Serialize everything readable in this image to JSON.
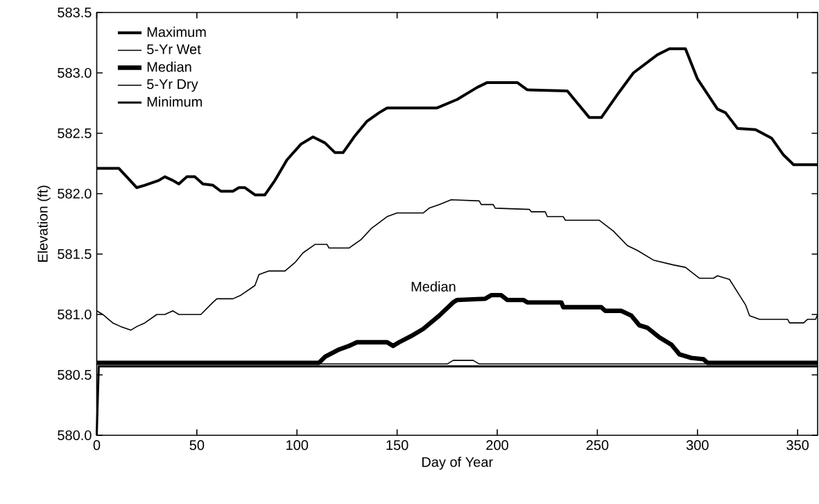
{
  "chart_data": {
    "type": "line",
    "xlabel": "Day of Year",
    "ylabel": "Elevation (ft)",
    "xlim": [
      0,
      360
    ],
    "ylim": [
      580.0,
      583.5
    ],
    "xticks": [
      0,
      50,
      100,
      150,
      200,
      250,
      300,
      350
    ],
    "yticks": [
      {
        "value": 580.0,
        "label": "580.0"
      },
      {
        "value": 580.5,
        "label": "580.5"
      },
      {
        "value": 581.0,
        "label": "581.0"
      },
      {
        "value": 581.5,
        "label": "581.5"
      },
      {
        "value": 582.0,
        "label": "582.0"
      },
      {
        "value": 582.5,
        "label": "582.5"
      },
      {
        "value": 583.0,
        "label": "583.0"
      },
      {
        "value": 583.5,
        "label": "583.5"
      }
    ],
    "grid": false,
    "legend": "top left",
    "line_style": "solid",
    "marker": "none",
    "annotations": [
      "Median"
    ],
    "series": [
      {
        "name": "Maximum",
        "color": "#000000",
        "x": [
          0,
          11,
          20,
          24,
          31,
          34,
          38,
          41,
          45,
          49,
          53,
          58,
          62,
          68,
          71,
          74,
          79,
          84,
          89,
          95,
          102,
          108,
          114,
          119,
          123,
          129,
          135,
          141,
          145,
          170,
          180,
          190,
          195,
          210,
          215,
          235,
          246,
          252,
          260,
          268,
          280,
          286,
          294,
          300,
          310,
          314,
          320,
          329,
          337,
          343,
          348,
          360
        ],
        "values": [
          582.21,
          582.21,
          582.05,
          582.07,
          582.11,
          582.14,
          582.11,
          582.08,
          582.14,
          582.14,
          582.08,
          582.07,
          582.02,
          582.02,
          582.05,
          582.05,
          581.99,
          581.99,
          582.11,
          582.28,
          582.41,
          582.47,
          582.42,
          582.34,
          582.34,
          582.48,
          582.6,
          582.67,
          582.71,
          582.71,
          582.78,
          582.88,
          582.92,
          582.92,
          582.86,
          582.85,
          582.63,
          582.63,
          582.82,
          583.0,
          583.15,
          583.2,
          583.2,
          582.95,
          582.7,
          582.67,
          582.54,
          582.53,
          582.46,
          582.32,
          582.24,
          582.24
        ]
      },
      {
        "name": "5-Yr Wet",
        "color": "#000000",
        "x": [
          0,
          3,
          8,
          12,
          17,
          20,
          24,
          30,
          34,
          38,
          41,
          52,
          58,
          60,
          68,
          72,
          79,
          81,
          86,
          94,
          99,
          103,
          109,
          115,
          116,
          126,
          132,
          137,
          145,
          150,
          163,
          166,
          171,
          177,
          191,
          192,
          198,
          199,
          216,
          217,
          224,
          225,
          233,
          234,
          251,
          258,
          265,
          270,
          278,
          288,
          294,
          301,
          308,
          310,
          316,
          324,
          326,
          331,
          345,
          346,
          353,
          355,
          359,
          360
        ],
        "values": [
          581.03,
          581.0,
          580.93,
          580.9,
          580.87,
          580.9,
          580.93,
          581.0,
          581.0,
          581.03,
          581.0,
          581.0,
          581.1,
          581.13,
          581.13,
          581.16,
          581.24,
          581.33,
          581.36,
          581.36,
          581.43,
          581.51,
          581.58,
          581.58,
          581.55,
          581.55,
          581.62,
          581.71,
          581.81,
          581.84,
          581.84,
          581.88,
          581.91,
          581.95,
          581.94,
          581.91,
          581.91,
          581.88,
          581.87,
          581.85,
          581.85,
          581.81,
          581.81,
          581.78,
          581.78,
          581.69,
          581.57,
          581.53,
          581.45,
          581.41,
          581.39,
          581.3,
          581.3,
          581.32,
          581.29,
          581.08,
          580.99,
          580.96,
          580.96,
          580.93,
          580.93,
          580.96,
          580.96,
          581.0
        ]
      },
      {
        "name": "Median",
        "color": "#000000",
        "x": [
          0,
          111,
          114,
          121,
          126,
          130,
          145,
          148,
          151,
          158,
          163,
          171,
          178,
          180,
          194,
          197,
          202,
          205,
          213,
          215,
          232,
          233,
          252,
          254,
          262,
          267,
          271,
          275,
          281,
          287,
          291,
          297,
          303,
          305,
          360
        ],
        "values": [
          580.6,
          580.6,
          580.65,
          580.71,
          580.74,
          580.77,
          580.77,
          580.74,
          580.77,
          580.83,
          580.88,
          580.99,
          581.1,
          581.12,
          581.13,
          581.16,
          581.16,
          581.12,
          581.12,
          581.1,
          581.1,
          581.06,
          581.06,
          581.03,
          581.03,
          580.99,
          580.91,
          580.89,
          580.81,
          580.75,
          580.67,
          580.64,
          580.63,
          580.6,
          580.6
        ]
      },
      {
        "name": "5-Yr Dry",
        "color": "#000000",
        "x": [
          0,
          175,
          178,
          188,
          191,
          360
        ],
        "values": [
          580.59,
          580.59,
          580.62,
          580.62,
          580.59,
          580.59
        ]
      },
      {
        "name": "Minimum",
        "color": "#000000",
        "x": [
          0,
          1,
          360
        ],
        "values": [
          580.0,
          580.57,
          580.57
        ]
      }
    ]
  }
}
